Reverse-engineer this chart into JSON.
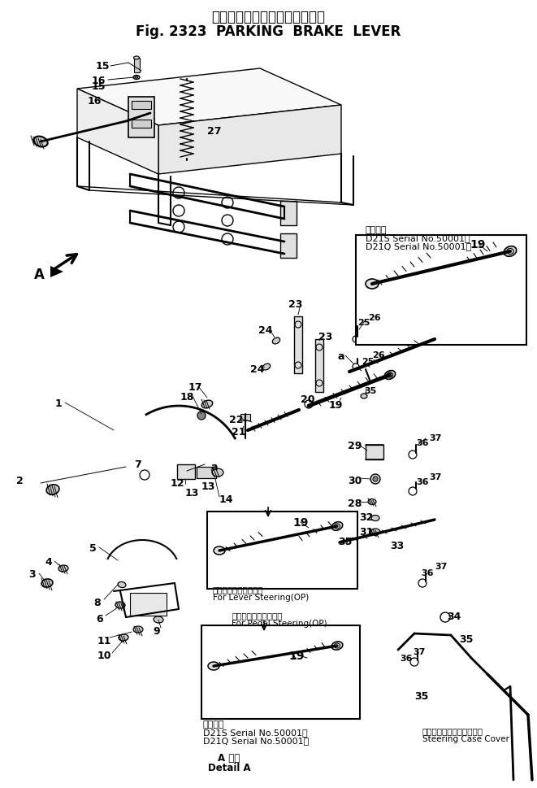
{
  "title_japanese": "パーキング　ブレーキ　レバー",
  "title_english": "Fig. 2323  PARKING  BRAKE  LEVER",
  "bg_color": "#ffffff",
  "line_color": "#000000",
  "top_inset_text": [
    "適用号機",
    "D21S Serial No.50001～",
    "D21Q Serial No.50001～"
  ],
  "lever_steering_text": [
    "レバーステアリング用",
    "For Lever Steering(OP)"
  ],
  "pedal_steering_text": [
    "ペダルステアリング用",
    "For Pedal Steering(OP)"
  ],
  "bottom_inset_text": [
    "適用号機",
    "D21S Serial No.50001～",
    "D21Q Serial No.50001～"
  ],
  "detail_text": [
    "A 詳細",
    "Detail A"
  ],
  "steering_cover_text": [
    "ステアリングケースカバー",
    "Steering Case Cover"
  ]
}
